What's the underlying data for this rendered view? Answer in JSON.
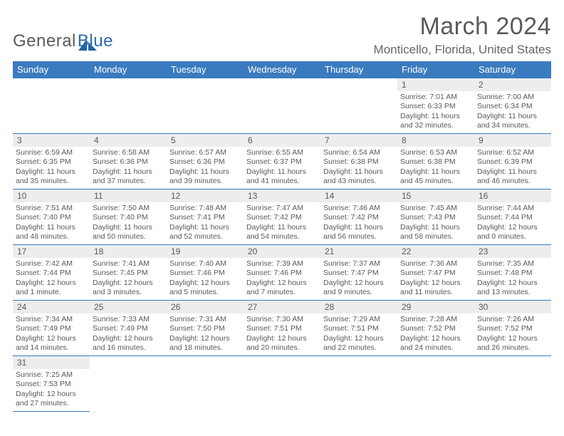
{
  "logo": {
    "a": "General",
    "b": "Blue"
  },
  "title": "March 2024",
  "location": "Monticello, Florida, United States",
  "headers": [
    "Sunday",
    "Monday",
    "Tuesday",
    "Wednesday",
    "Thursday",
    "Friday",
    "Saturday"
  ],
  "header_bg": "#3a7bbf",
  "header_fg": "#ffffff",
  "daynum_bg": "#eceded",
  "text_color": "#595959",
  "rule_color": "#3a7bbf",
  "days": {
    "1": {
      "sr": "7:01 AM",
      "ss": "6:33 PM",
      "dl": "11 hours and 32 minutes."
    },
    "2": {
      "sr": "7:00 AM",
      "ss": "6:34 PM",
      "dl": "11 hours and 34 minutes."
    },
    "3": {
      "sr": "6:59 AM",
      "ss": "6:35 PM",
      "dl": "11 hours and 35 minutes."
    },
    "4": {
      "sr": "6:58 AM",
      "ss": "6:36 PM",
      "dl": "11 hours and 37 minutes."
    },
    "5": {
      "sr": "6:57 AM",
      "ss": "6:36 PM",
      "dl": "11 hours and 39 minutes."
    },
    "6": {
      "sr": "6:55 AM",
      "ss": "6:37 PM",
      "dl": "11 hours and 41 minutes."
    },
    "7": {
      "sr": "6:54 AM",
      "ss": "6:38 PM",
      "dl": "11 hours and 43 minutes."
    },
    "8": {
      "sr": "6:53 AM",
      "ss": "6:38 PM",
      "dl": "11 hours and 45 minutes."
    },
    "9": {
      "sr": "6:52 AM",
      "ss": "6:39 PM",
      "dl": "11 hours and 46 minutes."
    },
    "10": {
      "sr": "7:51 AM",
      "ss": "7:40 PM",
      "dl": "11 hours and 48 minutes."
    },
    "11": {
      "sr": "7:50 AM",
      "ss": "7:40 PM",
      "dl": "11 hours and 50 minutes."
    },
    "12": {
      "sr": "7:48 AM",
      "ss": "7:41 PM",
      "dl": "11 hours and 52 minutes."
    },
    "13": {
      "sr": "7:47 AM",
      "ss": "7:42 PM",
      "dl": "11 hours and 54 minutes."
    },
    "14": {
      "sr": "7:46 AM",
      "ss": "7:42 PM",
      "dl": "11 hours and 56 minutes."
    },
    "15": {
      "sr": "7:45 AM",
      "ss": "7:43 PM",
      "dl": "11 hours and 58 minutes."
    },
    "16": {
      "sr": "7:44 AM",
      "ss": "7:44 PM",
      "dl": "12 hours and 0 minutes."
    },
    "17": {
      "sr": "7:42 AM",
      "ss": "7:44 PM",
      "dl": "12 hours and 1 minute."
    },
    "18": {
      "sr": "7:41 AM",
      "ss": "7:45 PM",
      "dl": "12 hours and 3 minutes."
    },
    "19": {
      "sr": "7:40 AM",
      "ss": "7:46 PM",
      "dl": "12 hours and 5 minutes."
    },
    "20": {
      "sr": "7:39 AM",
      "ss": "7:46 PM",
      "dl": "12 hours and 7 minutes."
    },
    "21": {
      "sr": "7:37 AM",
      "ss": "7:47 PM",
      "dl": "12 hours and 9 minutes."
    },
    "22": {
      "sr": "7:36 AM",
      "ss": "7:47 PM",
      "dl": "12 hours and 11 minutes."
    },
    "23": {
      "sr": "7:35 AM",
      "ss": "7:48 PM",
      "dl": "12 hours and 13 minutes."
    },
    "24": {
      "sr": "7:34 AM",
      "ss": "7:49 PM",
      "dl": "12 hours and 14 minutes."
    },
    "25": {
      "sr": "7:33 AM",
      "ss": "7:49 PM",
      "dl": "12 hours and 16 minutes."
    },
    "26": {
      "sr": "7:31 AM",
      "ss": "7:50 PM",
      "dl": "12 hours and 18 minutes."
    },
    "27": {
      "sr": "7:30 AM",
      "ss": "7:51 PM",
      "dl": "12 hours and 20 minutes."
    },
    "28": {
      "sr": "7:29 AM",
      "ss": "7:51 PM",
      "dl": "12 hours and 22 minutes."
    },
    "29": {
      "sr": "7:28 AM",
      "ss": "7:52 PM",
      "dl": "12 hours and 24 minutes."
    },
    "30": {
      "sr": "7:26 AM",
      "ss": "7:52 PM",
      "dl": "12 hours and 26 minutes."
    },
    "31": {
      "sr": "7:25 AM",
      "ss": "7:53 PM",
      "dl": "12 hours and 27 minutes."
    }
  },
  "grid": [
    [
      "",
      "",
      "",
      "",
      "",
      "1",
      "2"
    ],
    [
      "3",
      "4",
      "5",
      "6",
      "7",
      "8",
      "9"
    ],
    [
      "10",
      "11",
      "12",
      "13",
      "14",
      "15",
      "16"
    ],
    [
      "17",
      "18",
      "19",
      "20",
      "21",
      "22",
      "23"
    ],
    [
      "24",
      "25",
      "26",
      "27",
      "28",
      "29",
      "30"
    ],
    [
      "31",
      "",
      "",
      "",
      "",
      "",
      ""
    ]
  ],
  "labels": {
    "sunrise": "Sunrise: ",
    "sunset": "Sunset: ",
    "daylight": "Daylight: "
  }
}
